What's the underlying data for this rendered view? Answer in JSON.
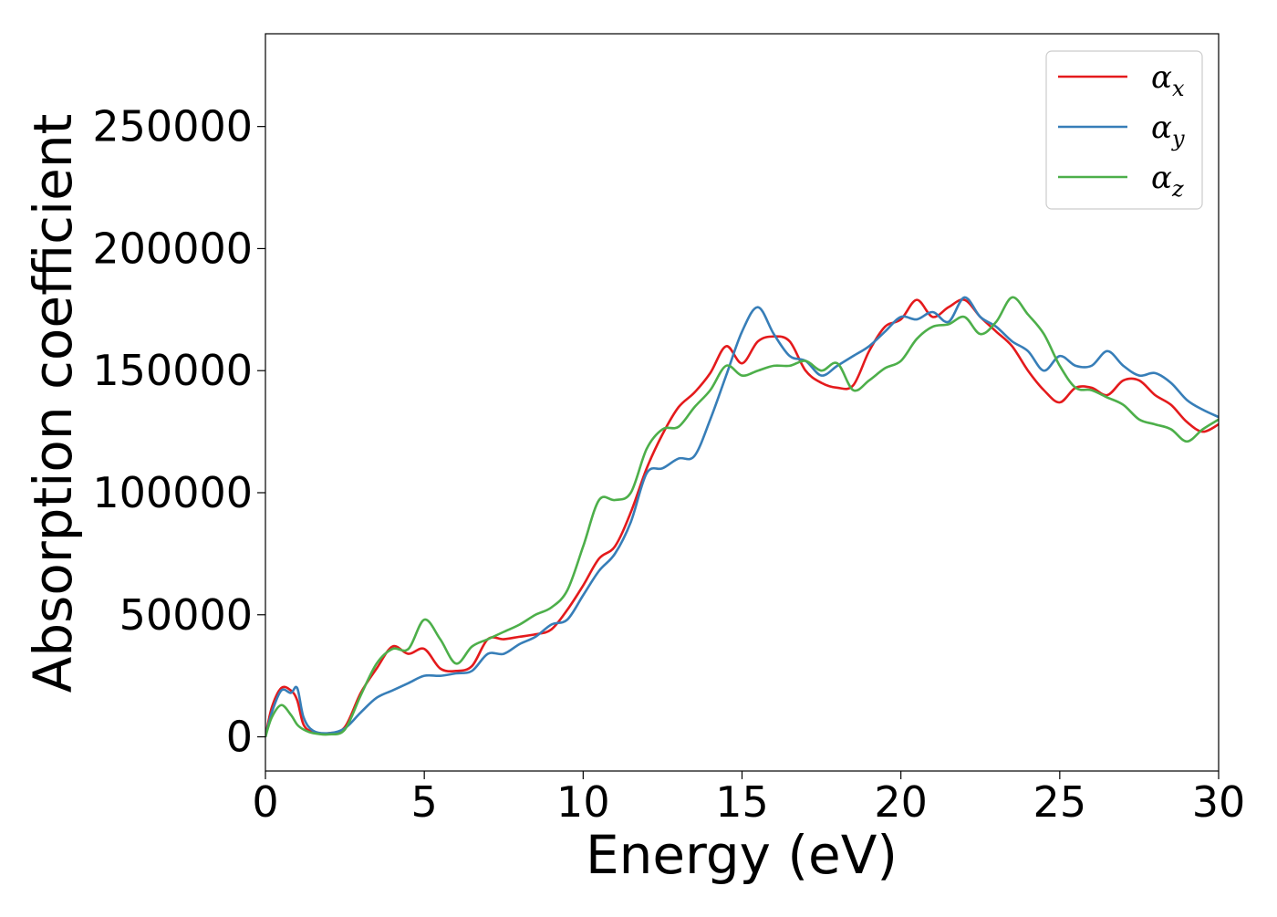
{
  "chart_data": {
    "type": "line",
    "xlabel": "Energy (eV)",
    "ylabel": "Absorption coefficient",
    "xlim": [
      0,
      30
    ],
    "ylim": [
      -14000,
      288000
    ],
    "xticks": [
      0,
      5,
      10,
      15,
      20,
      25,
      30
    ],
    "yticks": [
      0,
      50000,
      100000,
      150000,
      200000,
      250000
    ],
    "grid": false,
    "legend_position": "top-right",
    "series": [
      {
        "name": "αx",
        "symbol": "α",
        "subscript": "x",
        "color": "#e41a1c",
        "x": [
          0,
          0.2,
          0.5,
          0.8,
          1.0,
          1.2,
          1.5,
          2.0,
          2.5,
          3.0,
          3.5,
          4.0,
          4.5,
          5.0,
          5.5,
          6.0,
          6.5,
          7.0,
          7.5,
          8.0,
          8.5,
          9.0,
          9.5,
          10.0,
          10.5,
          11.0,
          11.5,
          12.0,
          12.5,
          13.0,
          13.5,
          14.0,
          14.5,
          15.0,
          15.5,
          16.0,
          16.5,
          17.0,
          17.5,
          18.0,
          18.5,
          19.0,
          19.5,
          20.0,
          20.5,
          21.0,
          21.5,
          22.0,
          22.5,
          23.0,
          23.5,
          24.0,
          24.5,
          25.0,
          25.5,
          26.0,
          26.5,
          27.0,
          27.5,
          28.0,
          28.5,
          29.0,
          29.5,
          30.0
        ],
        "values": [
          0,
          12000,
          20000,
          19000,
          15000,
          5000,
          2000,
          1500,
          4000,
          18000,
          28000,
          37000,
          34000,
          36000,
          28000,
          27000,
          29000,
          40000,
          40000,
          41000,
          42000,
          44000,
          52000,
          62000,
          73000,
          78000,
          92000,
          110000,
          124000,
          135000,
          141000,
          149000,
          160000,
          153000,
          162000,
          164000,
          162000,
          150000,
          145000,
          143000,
          144000,
          158000,
          168000,
          171000,
          179000,
          172000,
          176000,
          179000,
          172000,
          166000,
          160000,
          150000,
          142000,
          137000,
          143000,
          143000,
          140000,
          146000,
          146000,
          140000,
          136000,
          129000,
          125000,
          128000
        ]
      },
      {
        "name": "αy",
        "symbol": "α",
        "subscript": "y",
        "color": "#377eb8",
        "x": [
          0,
          0.2,
          0.5,
          0.8,
          1.0,
          1.2,
          1.5,
          2.0,
          2.5,
          3.0,
          3.5,
          4.0,
          4.5,
          5.0,
          5.5,
          6.0,
          6.5,
          7.0,
          7.5,
          8.0,
          8.5,
          9.0,
          9.5,
          10.0,
          10.5,
          11.0,
          11.5,
          12.0,
          12.5,
          13.0,
          13.5,
          14.0,
          14.5,
          15.0,
          15.5,
          16.0,
          16.5,
          17.0,
          17.5,
          18.0,
          18.5,
          19.0,
          19.5,
          20.0,
          20.5,
          21.0,
          21.5,
          22.0,
          22.5,
          23.0,
          23.5,
          24.0,
          24.5,
          25.0,
          25.5,
          26.0,
          26.5,
          27.0,
          27.5,
          28.0,
          28.5,
          29.0,
          29.5,
          30.0
        ],
        "values": [
          0,
          10000,
          19000,
          18000,
          20000,
          8000,
          2500,
          1500,
          3500,
          10000,
          16000,
          19000,
          22000,
          25000,
          25000,
          26000,
          27000,
          34000,
          34000,
          38000,
          41000,
          46000,
          48000,
          58000,
          68000,
          75000,
          88000,
          108000,
          110000,
          114000,
          115000,
          130000,
          148000,
          166000,
          176000,
          165000,
          156000,
          154000,
          148000,
          152000,
          156000,
          160000,
          166000,
          172000,
          171000,
          174000,
          170000,
          180000,
          172000,
          168000,
          162000,
          158000,
          150000,
          156000,
          152000,
          152000,
          158000,
          152000,
          148000,
          149000,
          145000,
          138000,
          134000,
          131000
        ]
      },
      {
        "name": "αz",
        "symbol": "α",
        "subscript": "z",
        "color": "#4daf4a",
        "x": [
          0,
          0.2,
          0.5,
          0.8,
          1.0,
          1.2,
          1.5,
          2.0,
          2.5,
          3.0,
          3.5,
          4.0,
          4.5,
          5.0,
          5.5,
          6.0,
          6.5,
          7.0,
          7.5,
          8.0,
          8.5,
          9.0,
          9.5,
          10.0,
          10.5,
          11.0,
          11.5,
          12.0,
          12.5,
          13.0,
          13.5,
          14.0,
          14.5,
          15.0,
          15.5,
          16.0,
          16.5,
          17.0,
          17.5,
          18.0,
          18.5,
          19.0,
          19.5,
          20.0,
          20.5,
          21.0,
          21.5,
          22.0,
          22.5,
          23.0,
          23.5,
          24.0,
          24.5,
          25.0,
          25.5,
          26.0,
          26.5,
          27.0,
          27.5,
          28.0,
          28.5,
          29.0,
          29.5,
          30.0
        ],
        "values": [
          0,
          8000,
          13000,
          9000,
          5000,
          3000,
          1500,
          1000,
          3000,
          17000,
          30000,
          36000,
          36000,
          48000,
          40000,
          30000,
          37000,
          40000,
          43000,
          46000,
          50000,
          53000,
          60000,
          78000,
          97000,
          97000,
          100000,
          118000,
          126000,
          127000,
          135000,
          142000,
          152000,
          148000,
          150000,
          152000,
          152000,
          154000,
          150000,
          153000,
          142000,
          146000,
          151000,
          154000,
          163000,
          168000,
          169000,
          172000,
          165000,
          170000,
          180000,
          173000,
          165000,
          152000,
          143000,
          142000,
          139000,
          136000,
          130000,
          128000,
          126000,
          121000,
          126000,
          130000
        ]
      }
    ]
  }
}
